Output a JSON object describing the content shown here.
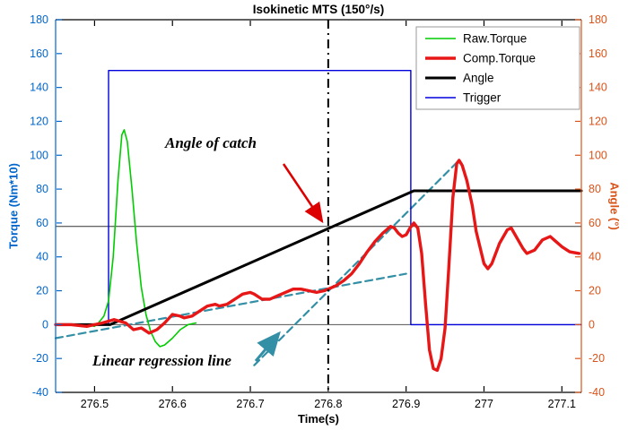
{
  "page": {
    "title": "Isokinetic MTS (150°/s)"
  },
  "axes": {
    "x": {
      "label": "Time(s)",
      "min": 276.45,
      "max": 277.125,
      "ticks": [
        276.5,
        276.6,
        276.7,
        276.8,
        276.9,
        277,
        277.1
      ],
      "tick_labels": [
        "276.5",
        "276.6",
        "276.7",
        "276.8",
        "276.9",
        "277",
        "277.1"
      ]
    },
    "y_left": {
      "label": "Torque (Nm*10)",
      "min": -40,
      "max": 180,
      "tick_step": 20,
      "color": "#0066CC"
    },
    "y_right": {
      "label": "Angle (°)",
      "min": -40,
      "max": 180,
      "tick_step": 20,
      "color": "#D95319"
    }
  },
  "legend": {
    "position": "top-right",
    "entries": [
      {
        "label": "Raw.Torque",
        "color": "#00CC00",
        "line_width": 1.6
      },
      {
        "label": "Comp.Torque",
        "color": "#E81717",
        "line_width": 3.4
      },
      {
        "label": "Angle",
        "color": "#000000",
        "line_width": 3
      },
      {
        "label": "Trigger",
        "color": "#0000DD",
        "line_width": 1.4
      }
    ]
  },
  "annotations": {
    "angle_of_catch": {
      "text": "Angle of catch",
      "arrow_color": "#DD0000"
    },
    "regression_label": {
      "text": "Linear regression line",
      "arrow_color": "#338FA6"
    },
    "catch_time_vline": 276.8,
    "catch_torque_hline": 58,
    "zero_hline": 0
  },
  "chart_data": {
    "type": "line",
    "title": "Isokinetic MTS (150°/s)",
    "xlabel": "Time(s)",
    "ylabel_left": "Torque (Nm*10)",
    "ylabel_right": "Angle (°)",
    "xlim": [
      276.45,
      277.125
    ],
    "ylim": [
      -40,
      180
    ],
    "series": [
      {
        "id": "regression-shallow",
        "axis": "left",
        "color": "#338FA6",
        "width": 2.2,
        "dash": "8 5",
        "points": [
          [
            276.45,
            -8
          ],
          [
            276.9,
            30
          ]
        ]
      },
      {
        "id": "regression-steep",
        "axis": "left",
        "color": "#338FA6",
        "width": 2.2,
        "dash": "8 5",
        "points": [
          [
            276.705,
            -24
          ],
          [
            276.968,
            97
          ]
        ]
      },
      {
        "id": "trigger",
        "axis": "left",
        "color": "#0000DD",
        "width": 1.4,
        "dash": null,
        "points": [
          [
            276.45,
            0
          ],
          [
            276.518,
            0
          ],
          [
            276.518,
            150
          ],
          [
            276.906,
            150
          ],
          [
            276.906,
            0
          ],
          [
            277.125,
            0
          ]
        ]
      },
      {
        "id": "raw-torque",
        "axis": "left",
        "color": "#00CC00",
        "width": 1.6,
        "dash": null,
        "points": [
          [
            276.45,
            0
          ],
          [
            276.49,
            0
          ],
          [
            276.5,
            -1
          ],
          [
            276.505,
            1
          ],
          [
            276.512,
            5
          ],
          [
            276.518,
            14
          ],
          [
            276.524,
            40
          ],
          [
            276.53,
            85
          ],
          [
            276.535,
            112
          ],
          [
            276.538,
            115
          ],
          [
            276.542,
            108
          ],
          [
            276.548,
            80
          ],
          [
            276.554,
            48
          ],
          [
            276.56,
            22
          ],
          [
            276.566,
            6
          ],
          [
            276.572,
            -4
          ],
          [
            276.578,
            -10
          ],
          [
            276.584,
            -13
          ],
          [
            276.59,
            -12
          ],
          [
            276.6,
            -8
          ],
          [
            276.61,
            -3
          ],
          [
            276.62,
            0
          ],
          [
            276.63,
            1
          ]
        ]
      },
      {
        "id": "angle",
        "axis": "right",
        "color": "#000000",
        "width": 3,
        "dash": null,
        "points": [
          [
            276.45,
            0
          ],
          [
            276.52,
            0
          ],
          [
            276.91,
            79
          ],
          [
            277.125,
            79
          ]
        ]
      },
      {
        "id": "comp-torque",
        "axis": "left",
        "color": "#E81717",
        "width": 3.4,
        "dash": null,
        "points": [
          [
            276.45,
            0
          ],
          [
            276.47,
            0
          ],
          [
            276.49,
            -1
          ],
          [
            276.51,
            1
          ],
          [
            276.525,
            3
          ],
          [
            276.54,
            1
          ],
          [
            276.55,
            -3
          ],
          [
            276.56,
            -2
          ],
          [
            276.57,
            -5
          ],
          [
            276.58,
            -3
          ],
          [
            276.59,
            1
          ],
          [
            276.6,
            6
          ],
          [
            276.61,
            5
          ],
          [
            276.615,
            4
          ],
          [
            276.625,
            5
          ],
          [
            276.635,
            8
          ],
          [
            276.645,
            11
          ],
          [
            276.655,
            12
          ],
          [
            276.66,
            11
          ],
          [
            276.67,
            12
          ],
          [
            276.68,
            15
          ],
          [
            276.69,
            18
          ],
          [
            276.7,
            19
          ],
          [
            276.705,
            18
          ],
          [
            276.715,
            15
          ],
          [
            276.725,
            15
          ],
          [
            276.735,
            17
          ],
          [
            276.745,
            19
          ],
          [
            276.755,
            21
          ],
          [
            276.765,
            21
          ],
          [
            276.775,
            20
          ],
          [
            276.785,
            19
          ],
          [
            276.795,
            20
          ],
          [
            276.8,
            21
          ],
          [
            276.81,
            23
          ],
          [
            276.82,
            26
          ],
          [
            276.83,
            30
          ],
          [
            276.84,
            36
          ],
          [
            276.85,
            43
          ],
          [
            276.86,
            49
          ],
          [
            276.87,
            54
          ],
          [
            276.875,
            56
          ],
          [
            276.88,
            58
          ],
          [
            276.885,
            57
          ],
          [
            276.89,
            54
          ],
          [
            276.895,
            52
          ],
          [
            276.9,
            53
          ],
          [
            276.905,
            57
          ],
          [
            276.91,
            60
          ],
          [
            276.915,
            57
          ],
          [
            276.92,
            42
          ],
          [
            276.925,
            12
          ],
          [
            276.93,
            -15
          ],
          [
            276.935,
            -26
          ],
          [
            276.94,
            -27
          ],
          [
            276.945,
            -20
          ],
          [
            276.95,
            -2
          ],
          [
            276.955,
            35
          ],
          [
            276.96,
            75
          ],
          [
            276.965,
            95
          ],
          [
            276.968,
            97
          ],
          [
            276.972,
            94
          ],
          [
            276.978,
            85
          ],
          [
            276.985,
            70
          ],
          [
            276.99,
            55
          ],
          [
            277.0,
            36
          ],
          [
            277.005,
            33
          ],
          [
            277.01,
            36
          ],
          [
            277.02,
            48
          ],
          [
            277.03,
            56
          ],
          [
            277.035,
            57
          ],
          [
            277.04,
            53
          ],
          [
            277.05,
            45
          ],
          [
            277.055,
            42
          ],
          [
            277.065,
            44
          ],
          [
            277.075,
            50
          ],
          [
            277.085,
            52
          ],
          [
            277.09,
            50
          ],
          [
            277.1,
            46
          ],
          [
            277.11,
            43
          ],
          [
            277.122,
            42
          ]
        ]
      }
    ]
  }
}
